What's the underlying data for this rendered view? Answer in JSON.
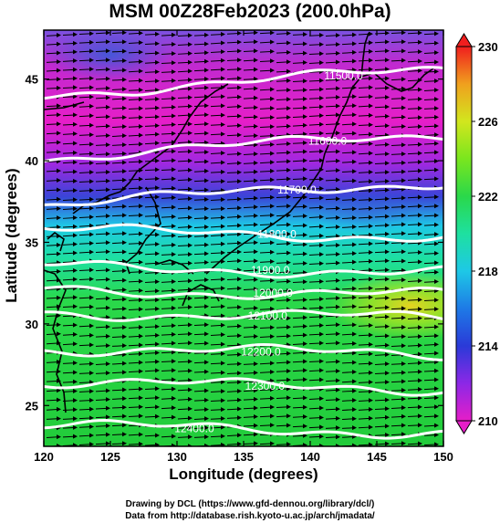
{
  "title": "MSM 00Z28Feb2023 (200.0hPa)",
  "xlabel": "Longitude (degrees)",
  "ylabel": "Latitude  (degrees)",
  "credit_line1": "Drawing by DCL (https://www.gfd-dennou.org/library/dcl/)",
  "credit_line2": "Data from http://database.rish.kyoto-u.ac.jp/arch/jmadata/",
  "colors": {
    "magenta": "#e61ec8",
    "purple": "#8c28e6",
    "blue": "#2a3ad8",
    "cyan": "#1ec8e6",
    "green": "#2ad84a",
    "yellowgreen": "#b4e61e",
    "orange": "#f0a01e",
    "red": "#f01e1e",
    "contour": "#ffffff",
    "coast": "#000000"
  },
  "chart_data": {
    "type": "heatmap",
    "xlim": [
      120,
      150
    ],
    "ylim": [
      22.5,
      48
    ],
    "x_ticks": [
      "120",
      "125",
      "130",
      "135",
      "140",
      "145",
      "150"
    ],
    "y_ticks": [
      "25",
      "30",
      "35",
      "40",
      "45"
    ],
    "colorbar": {
      "min": 210,
      "max": 230,
      "tick_labels": [
        "210",
        "214",
        "218",
        "222",
        "226",
        "230"
      ]
    },
    "contours": [
      {
        "label": "11500.0",
        "value": 11500,
        "label_lon": 142.5,
        "label_lat": 45.2
      },
      {
        "label": "11600.0",
        "value": 11600,
        "label_lon": 141.3,
        "label_lat": 41.2
      },
      {
        "label": "11700.0",
        "value": 11700,
        "label_lon": 139.0,
        "label_lat": 38.2
      },
      {
        "label": "11800.0",
        "value": 11800,
        "label_lon": 137.5,
        "label_lat": 35.5
      },
      {
        "label": "11900.0",
        "value": 11900,
        "label_lon": 137.0,
        "label_lat": 33.3
      },
      {
        "label": "12000.0",
        "value": 12000,
        "label_lon": 137.2,
        "label_lat": 31.9
      },
      {
        "label": "12100.0",
        "value": 12100,
        "label_lon": 136.8,
        "label_lat": 30.5
      },
      {
        "label": "12200.0",
        "value": 12200,
        "label_lon": 136.3,
        "label_lat": 28.3
      },
      {
        "label": "12300.0",
        "value": 12300,
        "label_lon": 136.6,
        "label_lat": 26.2
      },
      {
        "label": "12400.0",
        "value": 12400,
        "label_lon": 131.3,
        "label_lat": 23.6
      }
    ],
    "wind_vectors": "eastward arrows across domain"
  }
}
